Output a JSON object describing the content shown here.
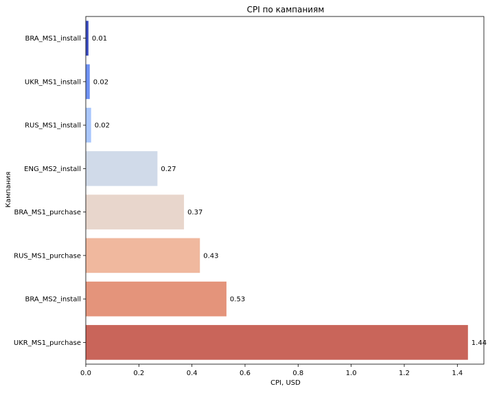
{
  "chart_data": {
    "type": "bar",
    "orientation": "horizontal",
    "title": "CPI по кампаниям",
    "xlabel": "CPI, USD",
    "ylabel": "Кампания",
    "xlim": [
      0,
      1.5
    ],
    "xticks": [
      "0.0",
      "0.2",
      "0.4",
      "0.6",
      "0.8",
      "1.0",
      "1.2",
      "1.4"
    ],
    "grid": false,
    "categories": [
      "BRA_MS1_install",
      "UKR_MS1_install",
      "RUS_MS1_install",
      "ENG_MS2_install",
      "BRA_MS1_purchase",
      "RUS_MS1_purchase",
      "BRA_MS2_install",
      "UKR_MS1_purchase"
    ],
    "values": [
      0.01,
      0.015,
      0.02,
      0.27,
      0.37,
      0.43,
      0.53,
      1.44
    ],
    "value_labels": [
      "0.01",
      "0.02",
      "0.02",
      "0.27",
      "0.37",
      "0.43",
      "0.53",
      "1.44"
    ],
    "colors": [
      "#3b4cc0",
      "#6f92f3",
      "#aac7fd",
      "#d0dae9",
      "#e8d6cc",
      "#f0b89e",
      "#e4947b",
      "#c9655a"
    ]
  }
}
